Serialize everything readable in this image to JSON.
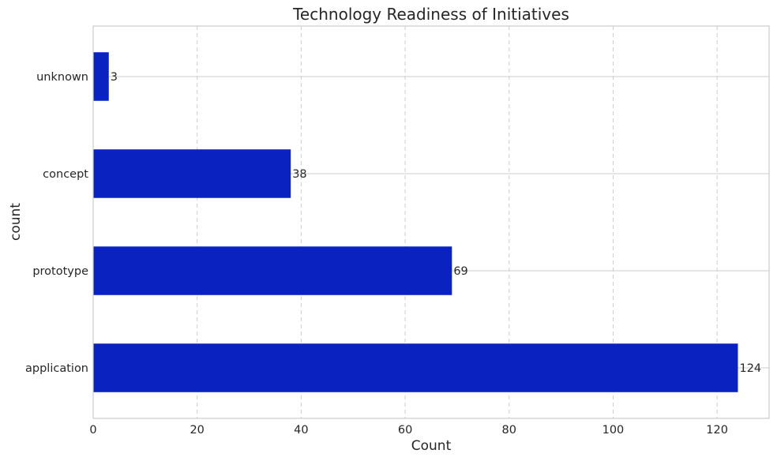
{
  "chart_data": {
    "type": "bar",
    "orientation": "horizontal",
    "title": "Technology Readiness of Initiatives",
    "xlabel": "Count",
    "ylabel": "count",
    "categories": [
      "application",
      "prototype",
      "concept",
      "unknown"
    ],
    "values": [
      124,
      69,
      38,
      3
    ],
    "xlim": [
      0,
      130
    ],
    "xticks": [
      0,
      20,
      40,
      60,
      80,
      100,
      120
    ],
    "grid": true,
    "bar_color": "#0a22bf"
  }
}
